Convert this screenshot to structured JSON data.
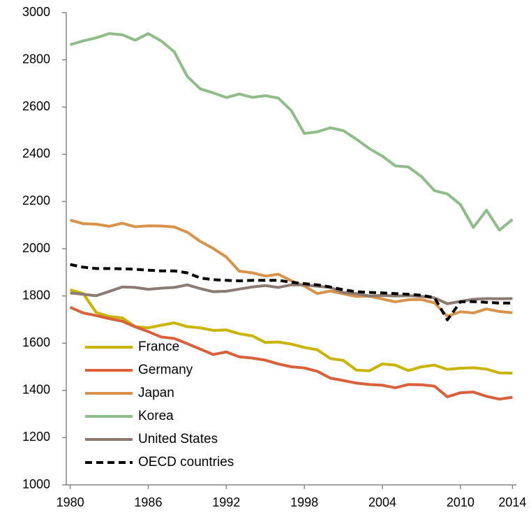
{
  "chart_data": {
    "type": "line",
    "x": [
      1980,
      1981,
      1982,
      1983,
      1984,
      1985,
      1986,
      1987,
      1988,
      1989,
      1990,
      1991,
      1992,
      1993,
      1994,
      1995,
      1996,
      1997,
      1998,
      1999,
      2000,
      2001,
      2002,
      2003,
      2004,
      2005,
      2006,
      2007,
      2008,
      2009,
      2010,
      2011,
      2012,
      2013,
      2014
    ],
    "xlim": [
      1979.7,
      2014.3
    ],
    "xticks": [
      1980,
      1986,
      1992,
      1998,
      2004,
      2010,
      2014
    ],
    "ylim": [
      1000,
      3000
    ],
    "yticks": [
      1000,
      1200,
      1400,
      1600,
      1800,
      2000,
      2200,
      2400,
      2600,
      2800,
      3000
    ],
    "legend": "lower left",
    "series": [
      {
        "name": "France",
        "color": "#c9b400",
        "dashed": false,
        "values": [
          1826,
          1810,
          1730,
          1713,
          1707,
          1670,
          1665,
          1676,
          1686,
          1670,
          1665,
          1654,
          1656,
          1640,
          1631,
          1603,
          1605,
          1596,
          1582,
          1572,
          1535,
          1527,
          1486,
          1483,
          1512,
          1507,
          1484,
          1500,
          1507,
          1489,
          1494,
          1496,
          1490,
          1474,
          1473
        ]
      },
      {
        "name": "Germany",
        "color": "#d9603b",
        "dashed": false,
        "values": [
          1752,
          1728,
          1717,
          1704,
          1693,
          1669,
          1649,
          1626,
          1620,
          1598,
          1575,
          1552,
          1563,
          1542,
          1537,
          1528,
          1512,
          1500,
          1495,
          1481,
          1452,
          1442,
          1431,
          1425,
          1422,
          1411,
          1425,
          1424,
          1418,
          1373,
          1390,
          1393,
          1375,
          1363,
          1371
        ]
      },
      {
        "name": "Japan",
        "color": "#d9924a",
        "dashed": false,
        "values": [
          2121,
          2106,
          2104,
          2095,
          2108,
          2093,
          2097,
          2096,
          2092,
          2070,
          2031,
          2001,
          1965,
          1905,
          1898,
          1884,
          1892,
          1864,
          1842,
          1810,
          1821,
          1809,
          1798,
          1799,
          1787,
          1775,
          1784,
          1785,
          1771,
          1714,
          1733,
          1728,
          1745,
          1734,
          1729
        ]
      },
      {
        "name": "Korea",
        "color": "#8fbd8a",
        "dashed": false,
        "values": [
          2864,
          2880,
          2893,
          2911,
          2906,
          2883,
          2911,
          2880,
          2834,
          2730,
          2677,
          2660,
          2640,
          2655,
          2641,
          2648,
          2638,
          2585,
          2488,
          2495,
          2512,
          2500,
          2464,
          2424,
          2392,
          2351,
          2346,
          2306,
          2246,
          2232,
          2187,
          2090,
          2163,
          2079,
          2124
        ]
      },
      {
        "name": "United States",
        "color": "#8c7b72",
        "dashed": false,
        "values": [
          1813,
          1807,
          1801,
          1819,
          1838,
          1836,
          1828,
          1833,
          1836,
          1847,
          1831,
          1818,
          1820,
          1829,
          1838,
          1844,
          1836,
          1847,
          1847,
          1841,
          1836,
          1814,
          1810,
          1800,
          1802,
          1800,
          1801,
          1798,
          1792,
          1767,
          1777,
          1786,
          1789,
          1788,
          1789
        ]
      },
      {
        "name": "OECD countries",
        "color": "#000000",
        "dashed": true,
        "values": [
          1933,
          1922,
          1916,
          1916,
          1915,
          1913,
          1909,
          1906,
          1906,
          1898,
          1876,
          1869,
          1866,
          1864,
          1866,
          1866,
          1866,
          1858,
          1852,
          1847,
          1838,
          1826,
          1818,
          1815,
          1813,
          1810,
          1807,
          1803,
          1793,
          1699,
          1775,
          1776,
          1773,
          1770,
          1770
        ]
      }
    ]
  }
}
